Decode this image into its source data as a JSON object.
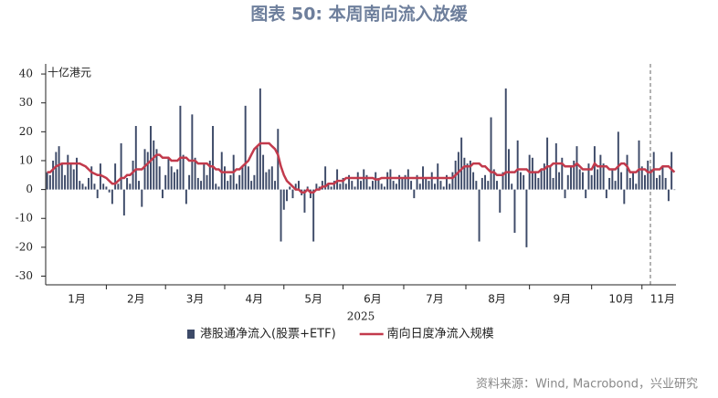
{
  "chart_data": {
    "type": "bar",
    "title": "图表 50: 本周南向流入放缓",
    "y_unit": "十亿港元",
    "xlabel": "2025",
    "source": "资料来源：Wind, Macrobond，兴业研究",
    "categories": [
      null,
      null,
      null,
      null,
      null,
      null,
      null,
      null,
      null,
      null,
      "1月",
      null,
      null,
      null,
      null,
      null,
      null,
      null,
      null,
      null,
      null,
      null,
      null,
      null,
      null,
      null,
      null,
      null,
      null,
      null,
      "2月",
      null,
      null,
      null,
      null,
      null,
      null,
      null,
      null,
      null,
      null,
      null,
      null,
      null,
      null,
      null,
      null,
      null,
      null,
      null,
      "3月",
      null,
      null,
      null,
      null,
      null,
      null,
      null,
      null,
      null,
      null,
      null,
      null,
      null,
      null,
      null,
      null,
      null,
      null,
      null,
      "4月",
      null,
      null,
      null,
      null,
      null,
      null,
      null,
      null,
      null,
      null,
      null,
      null,
      null,
      null,
      null,
      null,
      null,
      null,
      null,
      "5月",
      null,
      null,
      null,
      null,
      null,
      null,
      null,
      null,
      null,
      null,
      null,
      null,
      null,
      null,
      null,
      null,
      null,
      null,
      null,
      "6月",
      null,
      null,
      null,
      null,
      null,
      null,
      null,
      null,
      null,
      null,
      null,
      null,
      null,
      null,
      null,
      null,
      null,
      null,
      null,
      null,
      "7月",
      null,
      null,
      null,
      null,
      null,
      null,
      null,
      null,
      null,
      null,
      null,
      null,
      null,
      null,
      null,
      null,
      null,
      null,
      null,
      null,
      "8月",
      null,
      null,
      null,
      null,
      null,
      null,
      null,
      null,
      null,
      null,
      null,
      null,
      null,
      null,
      null,
      null,
      null,
      null,
      null,
      null,
      null,
      "9月",
      null,
      null,
      null,
      null,
      null,
      null,
      null,
      null,
      null,
      null,
      null,
      null,
      null,
      null,
      null,
      null,
      null,
      null,
      null,
      "10月",
      null,
      null,
      null,
      null,
      null,
      null,
      null,
      null,
      null,
      null,
      null,
      null,
      null,
      "11月",
      null,
      null,
      null,
      null
    ],
    "series": [
      {
        "name": "港股通净流入(股票+ETF)",
        "type": "bar",
        "color": "#3d4a68",
        "values": [
          6,
          5,
          10,
          13,
          15,
          9,
          5,
          12,
          9,
          7,
          11,
          3,
          2,
          1,
          4,
          8,
          2,
          -3,
          9,
          2,
          1,
          -1,
          -5,
          9,
          2,
          16,
          -9,
          4,
          2,
          10,
          22,
          3,
          -6,
          14,
          13,
          22,
          17,
          14,
          8,
          -3,
          5,
          11,
          8,
          6,
          7,
          29,
          12,
          -5,
          5,
          26,
          11,
          4,
          3,
          9,
          5,
          10,
          22,
          2,
          1,
          13,
          8,
          3,
          5,
          12,
          2,
          5,
          8,
          29,
          8,
          3,
          5,
          15,
          35,
          12,
          6,
          7,
          8,
          3,
          21,
          -18,
          -7,
          -4,
          1,
          -3,
          2,
          3,
          -2,
          -8,
          1,
          -3,
          -18,
          2,
          1,
          3,
          8,
          2,
          1,
          3,
          7,
          2,
          4,
          2,
          5,
          3,
          1,
          6,
          3,
          7,
          5,
          1,
          3,
          6,
          4,
          2,
          1,
          6,
          7,
          3,
          2,
          5,
          4,
          5,
          7,
          3,
          -3,
          5,
          2,
          8,
          4,
          3,
          6,
          2,
          9,
          3,
          1,
          5,
          2,
          6,
          10,
          13,
          18,
          11,
          9,
          10,
          6,
          3,
          -18,
          4,
          5,
          3,
          25,
          7,
          3,
          -8,
          6,
          35,
          14,
          2,
          -15,
          17,
          6,
          5,
          -20,
          12,
          11,
          6,
          4,
          7,
          9,
          18,
          8,
          4,
          16,
          6,
          11,
          -3,
          5,
          8,
          10,
          15,
          7,
          6,
          -3,
          9,
          5,
          15,
          7,
          12,
          9,
          -3,
          4,
          7,
          3,
          20,
          6,
          -5,
          12,
          4,
          6,
          2,
          17,
          8,
          5,
          10,
          7,
          13,
          4,
          5,
          8,
          4,
          -4,
          13,
          0
        ]
      },
      {
        "name": "南向日度净流入规模",
        "type": "line",
        "color": "#c23a4c",
        "values": [
          6,
          6,
          7,
          8,
          8.5,
          9,
          9,
          9,
          9,
          9,
          9,
          9,
          8.5,
          8,
          7,
          6,
          5.5,
          5,
          5,
          4.5,
          4,
          3,
          2,
          2,
          3,
          4,
          4,
          5,
          5,
          6,
          7,
          7,
          7,
          8,
          9,
          10,
          11,
          12,
          12,
          11,
          11,
          11,
          10,
          10,
          10,
          11,
          11,
          11,
          10,
          10,
          10,
          9,
          9,
          9,
          9,
          8,
          8,
          7,
          7,
          6,
          6,
          6,
          6,
          6,
          7,
          7,
          8,
          9,
          10,
          12,
          14,
          15,
          16,
          16,
          16,
          16,
          15,
          14,
          12,
          8,
          5,
          3,
          2,
          1,
          0,
          0,
          -1,
          -1,
          0,
          -1,
          -1,
          0,
          0,
          1,
          1,
          2,
          2,
          2,
          3,
          3,
          3,
          4,
          4,
          4,
          4,
          4,
          4,
          4,
          4,
          4,
          4,
          3.5,
          3.5,
          4,
          4,
          4,
          4,
          4,
          4,
          4,
          4,
          4,
          4,
          4,
          4,
          4,
          4,
          4,
          4,
          4,
          4,
          4,
          4,
          4,
          4,
          4,
          4,
          4,
          5,
          6,
          7,
          8,
          8,
          8,
          9,
          9,
          9,
          8,
          8,
          7,
          6,
          6,
          5,
          5,
          5,
          6,
          6,
          6,
          6,
          7,
          7,
          7,
          7,
          6,
          6,
          6,
          6,
          7,
          7,
          8,
          8,
          9,
          9,
          9,
          9,
          8,
          8,
          8,
          8,
          9,
          8,
          7,
          7,
          7,
          7,
          9,
          8,
          8,
          8,
          8,
          7,
          7,
          7,
          8,
          9,
          9,
          8,
          6,
          6,
          6,
          7,
          7,
          7,
          6,
          6,
          7,
          7,
          7,
          8,
          8,
          8,
          7,
          6
        ]
      }
    ],
    "ylim": [
      -33,
      43.5
    ],
    "yticks": [
      -30,
      -20,
      -10,
      0,
      10,
      20,
      30,
      40
    ]
  }
}
